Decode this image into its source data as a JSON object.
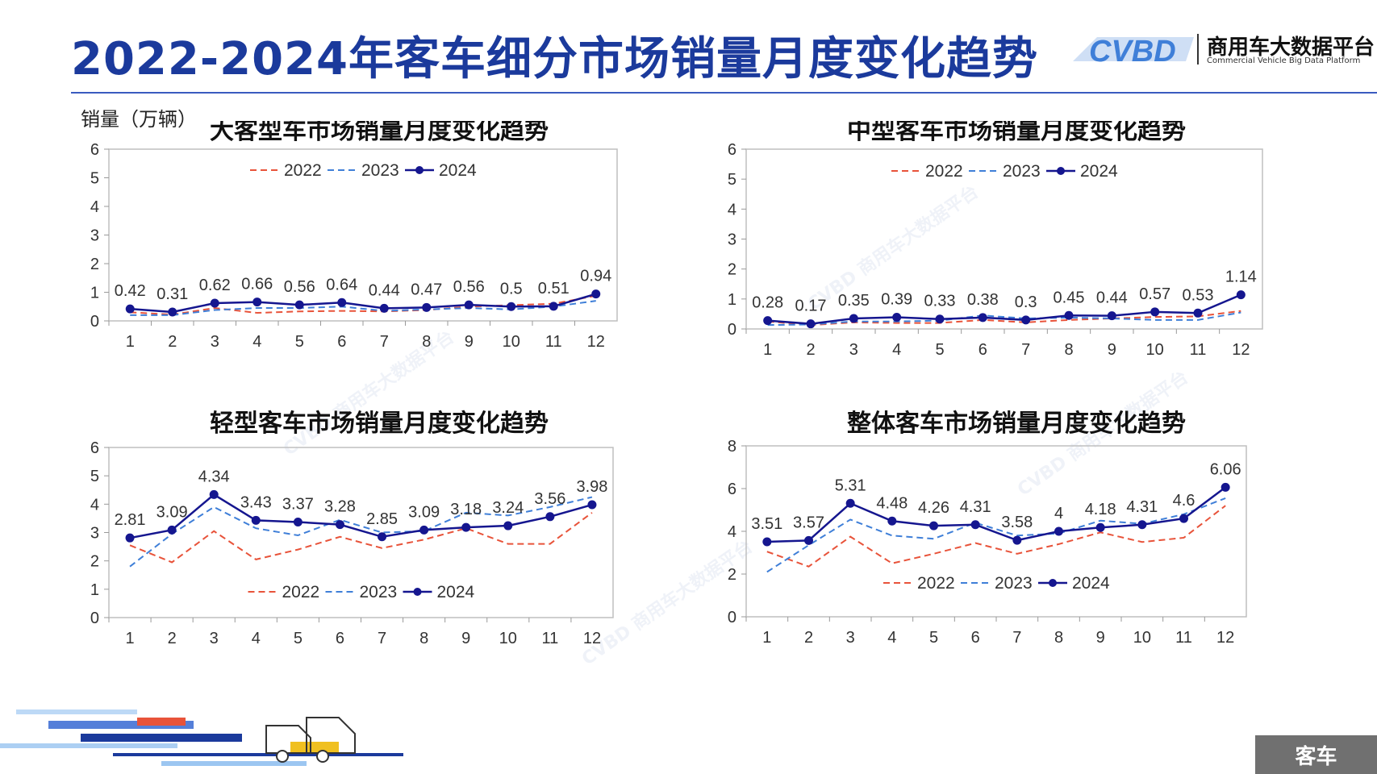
{
  "header": {
    "title": "2022-2024年客车细分市场销量月度变化趋势",
    "logo_mark": "CVBD",
    "logo_cn": "商用车大数据平台",
    "logo_en": "Commercial Vehicle Big Data Platform"
  },
  "unit_label": "销量（万辆）",
  "footer_tag": "客车",
  "colors": {
    "s2022": "#e8533a",
    "s2023": "#3f7fd8",
    "s2024": "#15168f",
    "title": "#1b3a9c"
  },
  "chart_data": [
    {
      "type": "line",
      "title": "大客型车市场销量月度变化趋势",
      "x": [
        "1",
        "2",
        "3",
        "4",
        "5",
        "6",
        "7",
        "8",
        "9",
        "10",
        "11",
        "12"
      ],
      "ylim": [
        0,
        6
      ],
      "yticks": [
        "0",
        "1",
        "2",
        "3",
        "4",
        "5",
        "6"
      ],
      "legend": "top",
      "series": [
        {
          "name": "2022",
          "style": "dashed",
          "values": [
            0.3,
            0.22,
            0.45,
            0.28,
            0.33,
            0.35,
            0.33,
            0.38,
            0.5,
            0.55,
            0.6,
            0.88
          ]
        },
        {
          "name": "2023",
          "style": "dashed",
          "values": [
            0.2,
            0.2,
            0.38,
            0.45,
            0.45,
            0.5,
            0.35,
            0.4,
            0.45,
            0.4,
            0.5,
            0.7
          ]
        },
        {
          "name": "2024",
          "style": "solid-marker",
          "values": [
            0.42,
            0.31,
            0.62,
            0.66,
            0.56,
            0.64,
            0.44,
            0.47,
            0.56,
            0.5,
            0.51,
            0.94
          ],
          "labels": [
            "0.42",
            "0.31",
            "0.62",
            "0.66",
            "0.56",
            "0.64",
            "0.44",
            "0.47",
            "0.56",
            "0.5",
            "0.51",
            "0.94"
          ]
        }
      ]
    },
    {
      "type": "line",
      "title": "中型客车市场销量月度变化趋势",
      "x": [
        "1",
        "2",
        "3",
        "4",
        "5",
        "6",
        "7",
        "8",
        "9",
        "10",
        "11",
        "12"
      ],
      "ylim": [
        0,
        6
      ],
      "yticks": [
        "0",
        "1",
        "2",
        "3",
        "4",
        "5",
        "6"
      ],
      "legend": "top",
      "series": [
        {
          "name": "2022",
          "style": "dashed",
          "values": [
            0.25,
            0.13,
            0.22,
            0.2,
            0.2,
            0.3,
            0.22,
            0.3,
            0.35,
            0.4,
            0.42,
            0.6
          ]
        },
        {
          "name": "2023",
          "style": "dashed",
          "values": [
            0.13,
            0.15,
            0.25,
            0.25,
            0.28,
            0.45,
            0.35,
            0.38,
            0.35,
            0.3,
            0.3,
            0.55
          ]
        },
        {
          "name": "2024",
          "style": "solid-marker",
          "values": [
            0.28,
            0.17,
            0.35,
            0.39,
            0.33,
            0.38,
            0.3,
            0.45,
            0.44,
            0.57,
            0.53,
            1.14
          ],
          "labels": [
            "0.28",
            "0.17",
            "0.35",
            "0.39",
            "0.33",
            "0.38",
            "0.3",
            "0.45",
            "0.44",
            "0.57",
            "0.53",
            "1.14"
          ]
        }
      ]
    },
    {
      "type": "line",
      "title": "轻型客车市场销量月度变化趋势",
      "x": [
        "1",
        "2",
        "3",
        "4",
        "5",
        "6",
        "7",
        "8",
        "9",
        "10",
        "11",
        "12"
      ],
      "ylim": [
        0,
        6
      ],
      "yticks": [
        "0",
        "1",
        "2",
        "3",
        "4",
        "5",
        "6"
      ],
      "legend": "bottom",
      "series": [
        {
          "name": "2022",
          "style": "dashed",
          "values": [
            2.55,
            1.95,
            3.05,
            2.05,
            2.4,
            2.85,
            2.45,
            2.75,
            3.15,
            2.6,
            2.6,
            3.7
          ]
        },
        {
          "name": "2023",
          "style": "dashed",
          "values": [
            1.8,
            2.95,
            3.9,
            3.15,
            2.9,
            3.45,
            3.0,
            3.05,
            3.7,
            3.6,
            3.9,
            4.25
          ]
        },
        {
          "name": "2024",
          "style": "solid-marker",
          "values": [
            2.81,
            3.09,
            4.34,
            3.43,
            3.37,
            3.28,
            2.85,
            3.09,
            3.18,
            3.24,
            3.56,
            3.98
          ],
          "labels": [
            "2.81",
            "3.09",
            "4.34",
            "3.43",
            "3.37",
            "3.28",
            "2.85",
            "3.09",
            "3.18",
            "3.24",
            "3.56",
            "3.98"
          ]
        }
      ]
    },
    {
      "type": "line",
      "title": "整体客车市场销量月度变化趋势",
      "x": [
        "1",
        "2",
        "3",
        "4",
        "5",
        "6",
        "7",
        "8",
        "9",
        "10",
        "11",
        "12"
      ],
      "ylim": [
        0,
        8
      ],
      "yticks": [
        "0",
        "2",
        "4",
        "6",
        "8"
      ],
      "legend": "bottom",
      "series": [
        {
          "name": "2022",
          "style": "dashed",
          "values": [
            3.05,
            2.35,
            3.75,
            2.5,
            2.95,
            3.45,
            2.95,
            3.4,
            3.95,
            3.5,
            3.7,
            5.2
          ]
        },
        {
          "name": "2023",
          "style": "dashed",
          "values": [
            2.1,
            3.35,
            4.55,
            3.8,
            3.65,
            4.4,
            3.8,
            3.9,
            4.5,
            4.35,
            4.8,
            5.55
          ]
        },
        {
          "name": "2024",
          "style": "solid-marker",
          "values": [
            3.51,
            3.57,
            5.31,
            4.48,
            4.26,
            4.31,
            3.58,
            4,
            4.18,
            4.31,
            4.6,
            6.06
          ],
          "labels": [
            "3.51",
            "3.57",
            "5.31",
            "4.48",
            "4.26",
            "4.31",
            "3.58",
            "4",
            "4.18",
            "4.31",
            "4.6",
            "6.06"
          ]
        }
      ]
    }
  ]
}
